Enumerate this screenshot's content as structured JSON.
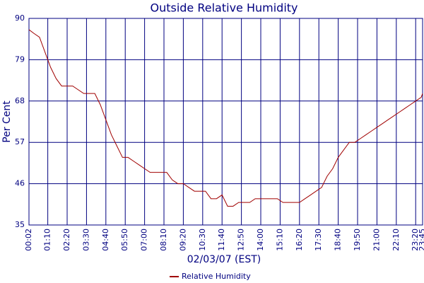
{
  "chart_data": {
    "type": "line",
    "title": "Outside Relative Humidity",
    "x_label": "02/03/07 (EST)",
    "y_label": "Per Cent",
    "x": [
      2,
      20,
      40,
      60,
      80,
      100,
      120,
      140,
      160,
      180,
      200,
      220,
      240,
      260,
      280,
      300,
      320,
      340,
      360,
      380,
      400,
      420,
      440,
      460,
      480,
      500,
      520,
      540,
      560,
      580,
      600,
      620,
      640,
      660,
      680,
      700,
      720,
      740,
      760,
      780,
      800,
      820,
      840,
      860,
      880,
      900,
      920,
      940,
      960,
      980,
      1000,
      1020,
      1040,
      1060,
      1080,
      1100,
      1120,
      1140,
      1160,
      1180,
      1200,
      1220,
      1240,
      1260,
      1280,
      1300,
      1320,
      1340,
      1360,
      1380,
      1400,
      1420,
      1425
    ],
    "series": [
      {
        "name": "Relative Humidity",
        "color": "#a00000",
        "values": [
          87,
          86,
          85,
          81,
          77,
          74,
          72,
          72,
          72,
          71,
          70,
          70,
          70,
          67,
          63,
          59,
          56,
          53,
          53,
          52,
          51,
          50,
          49,
          49,
          49,
          49,
          47,
          46,
          46,
          45,
          44,
          44,
          44,
          42,
          42,
          43,
          40,
          40,
          41,
          41,
          41,
          42,
          42,
          42,
          42,
          42,
          41,
          41,
          41,
          41,
          42,
          43,
          44,
          45,
          48,
          50,
          53,
          55,
          57,
          57,
          58,
          59,
          60,
          61,
          62,
          63,
          64,
          65,
          66,
          67,
          68,
          69,
          70
        ]
      }
    ],
    "xlim": [
      2,
      1425
    ],
    "xticks": [
      {
        "value": 2,
        "label": "00:02"
      },
      {
        "value": 70,
        "label": "01:10"
      },
      {
        "value": 140,
        "label": "02:20"
      },
      {
        "value": 210,
        "label": "03:30"
      },
      {
        "value": 280,
        "label": "04:40"
      },
      {
        "value": 350,
        "label": "05:50"
      },
      {
        "value": 420,
        "label": "07:00"
      },
      {
        "value": 490,
        "label": "08:10"
      },
      {
        "value": 560,
        "label": "09:20"
      },
      {
        "value": 630,
        "label": "10:30"
      },
      {
        "value": 700,
        "label": "11:40"
      },
      {
        "value": 770,
        "label": "12:50"
      },
      {
        "value": 840,
        "label": "14:00"
      },
      {
        "value": 910,
        "label": "15:10"
      },
      {
        "value": 980,
        "label": "16:20"
      },
      {
        "value": 1050,
        "label": "17:30"
      },
      {
        "value": 1120,
        "label": "18:40"
      },
      {
        "value": 1190,
        "label": "19:50"
      },
      {
        "value": 1260,
        "label": "21:00"
      },
      {
        "value": 1330,
        "label": "22:10"
      },
      {
        "value": 1400,
        "label": "23:20"
      },
      {
        "value": 1425,
        "label": "23:45"
      }
    ],
    "ylim": [
      35,
      90
    ],
    "yticks": [
      35,
      46,
      57,
      68,
      79,
      90
    ],
    "grid": true
  }
}
